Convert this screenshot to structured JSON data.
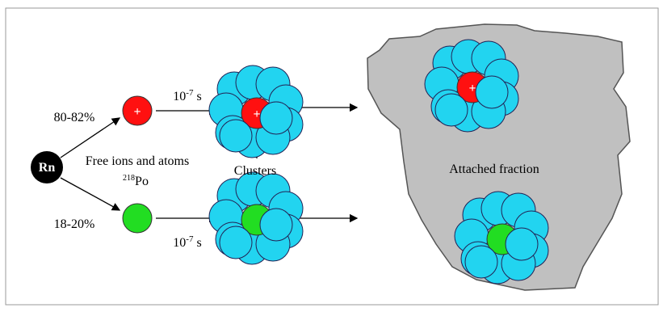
{
  "rn": "Rn",
  "upper_percent": "80-82%",
  "lower_percent": "18-20%",
  "time_upper": {
    "base": "10",
    "exp": "-7",
    "unit": " s"
  },
  "time_lower": {
    "base": "10",
    "exp": "-7",
    "unit": " s"
  },
  "free_label": "Free ions and atoms",
  "po": {
    "mass": "218",
    "symbol": "Po"
  },
  "clusters_label": "Clusters",
  "attached_label": "Attached fraction",
  "charge": "+"
}
